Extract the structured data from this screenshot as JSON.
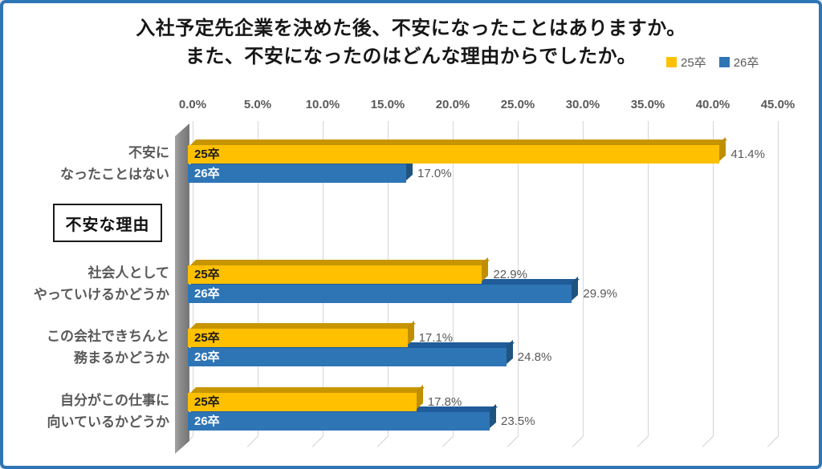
{
  "frame": {
    "border_color": "#2e75b6",
    "background": "#ffffff"
  },
  "title": {
    "line1": "入社予定先企業を決めた後、不安になったことはありますか。",
    "line2": "また、不安になったのはどんな理由からでしたか。"
  },
  "annotation_box": {
    "label": "不安な理由"
  },
  "chart_data": {
    "type": "bar",
    "orientation": "horizontal",
    "style": "3d",
    "title": "入社予定先企業を決めた後、不安になったことはありますか。また、不安になったのはどんな理由からでしたか。",
    "axis": {
      "unit": "%",
      "min": 0,
      "max": 45,
      "tick_step": 5,
      "tick_labels": [
        "0.0%",
        "5.0%",
        "10.0%",
        "15.0%",
        "20.0%",
        "25.0%",
        "30.0%",
        "35.0%",
        "40.0%",
        "45.0%"
      ]
    },
    "grid": true,
    "legend_position": "top-right",
    "series": [
      {
        "name": "25卒",
        "color": "#FFC000",
        "top_color": "#C79500",
        "side_color": "#BF8F00",
        "label_color": "#1a1a1a"
      },
      {
        "name": "26卒",
        "color": "#2E75B6",
        "top_color": "#1F5C99",
        "side_color": "#1F5380",
        "label_color": "#ffffff"
      }
    ],
    "groups": [
      {
        "category_lines": [
          "不安に",
          "なったことはない"
        ],
        "values": [
          41.4,
          17.0
        ],
        "value_labels": [
          "41.4%",
          "17.0%"
        ]
      },
      {
        "category_lines": [
          "社会人として",
          "やっていけるかどうか"
        ],
        "values": [
          22.9,
          29.9
        ],
        "value_labels": [
          "22.9%",
          "29.9%"
        ]
      },
      {
        "category_lines": [
          "この会社できちんと",
          "務まるかどうか"
        ],
        "values": [
          17.1,
          24.8
        ],
        "value_labels": [
          "17.1%",
          "24.8%"
        ]
      },
      {
        "category_lines": [
          "自分がこの仕事に",
          "向いているかどうか"
        ],
        "values": [
          17.8,
          23.5
        ],
        "value_labels": [
          "17.8%",
          "23.5%"
        ]
      }
    ]
  }
}
